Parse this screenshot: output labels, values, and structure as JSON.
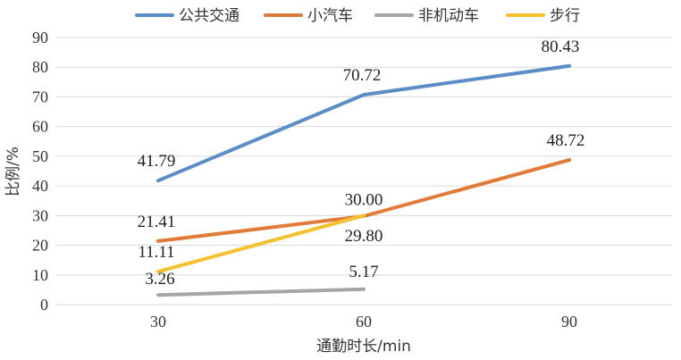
{
  "chart_data": {
    "type": "line",
    "x": [
      "30",
      "60",
      "90"
    ],
    "xlabel": "通勤时长/min",
    "ylabel": "比例/%",
    "ylim": [
      0,
      90
    ],
    "yticks": [
      "0",
      "10",
      "20",
      "30",
      "40",
      "50",
      "60",
      "70",
      "80",
      "90"
    ],
    "grid": true,
    "legend_position": "top",
    "series": [
      {
        "name": "公共交通",
        "color": "#5b8ec7",
        "values": [
          41.79,
          70.72,
          80.43
        ],
        "labels": [
          "41.79",
          "70.72",
          "80.43"
        ]
      },
      {
        "name": "小汽车",
        "color": "#e07b39",
        "values": [
          21.41,
          29.8,
          48.72
        ],
        "labels": [
          "21.41",
          "29.80",
          "48.72"
        ]
      },
      {
        "name": "非机动车",
        "color": "#a5a5a5",
        "values": [
          3.26,
          5.17,
          null
        ],
        "labels": [
          "3.26",
          "5.17",
          null
        ]
      },
      {
        "name": "步行",
        "color": "#f5c12f",
        "values": [
          11.11,
          30.0,
          null
        ],
        "labels": [
          "11.11",
          "30.00",
          null
        ]
      }
    ]
  }
}
